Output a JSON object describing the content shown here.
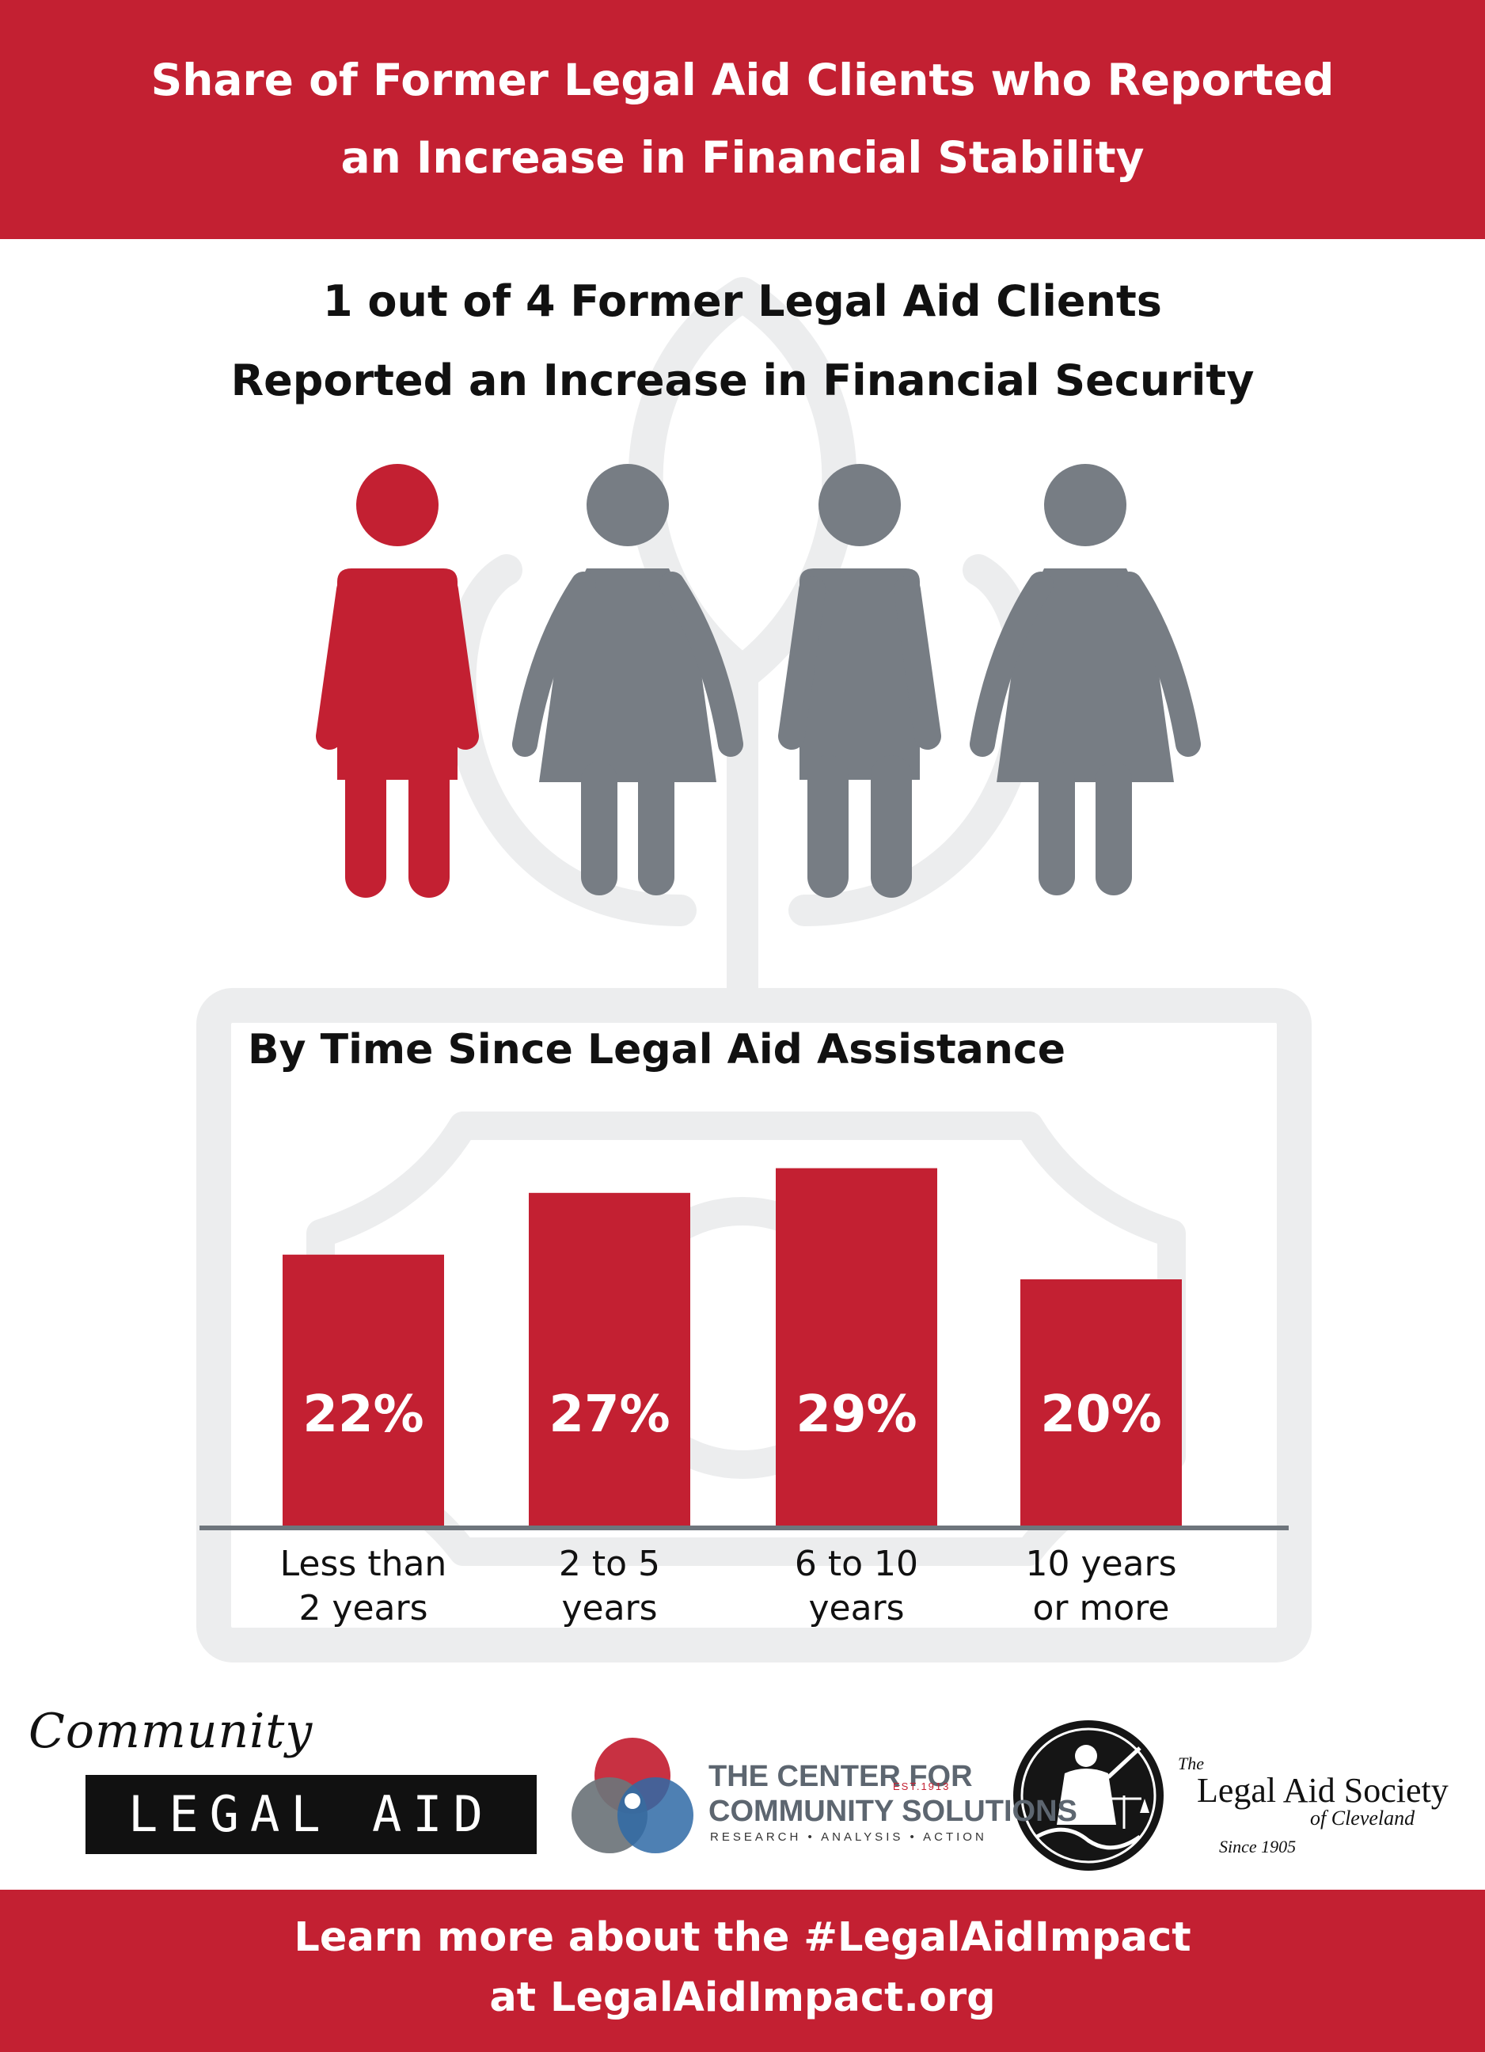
{
  "header": {
    "title_line1": "Share of Former Legal Aid Clients who Reported",
    "title_line2": "an Increase in Financial Stability"
  },
  "headline": {
    "line1": "1 out of 4 Former Legal Aid Clients",
    "line2": "Reported an Increase in Financial Security"
  },
  "pictogram": {
    "highlighted_count": 1,
    "total_count": 4,
    "highlight_color": "#c32032",
    "base_color": "#777d84",
    "figures": [
      "man",
      "woman",
      "man",
      "woman"
    ]
  },
  "chart_data": {
    "type": "bar",
    "title": "By Time Since Legal Aid Assistance",
    "categories": [
      "Less than 2 years",
      "2 to 5 years",
      "6 to 10 years",
      "10 years or more"
    ],
    "category_lines": [
      [
        "Less than",
        "2 years"
      ],
      [
        "2 to 5",
        "years"
      ],
      [
        "6 to 10",
        "years"
      ],
      [
        "10 years",
        "or more"
      ]
    ],
    "values": [
      22,
      27,
      29,
      20
    ],
    "value_labels": [
      "22%",
      "27%",
      "29%",
      "20%"
    ],
    "units": "%",
    "ylim": [
      0,
      30
    ],
    "bar_color": "#c32032",
    "baseline_color": "#6e757c",
    "grid": false,
    "legend": "none"
  },
  "logos": {
    "community_legal_aid": {
      "script": "Community",
      "word": "LEGAL AID"
    },
    "center_for_community_solutions": {
      "line1": "THE CENTER FOR",
      "line2": "COMMUNITY SOLUTIONS",
      "est": "EST.1913",
      "tagline": "RESEARCH • ANALYSIS • ACTION"
    },
    "legal_aid_society": {
      "the": "The",
      "name": "Legal Aid Society",
      "city": "of Cleveland",
      "since": "Since 1905"
    }
  },
  "footer": {
    "line1": "Learn more about the #LegalAidImpact",
    "line2": "at LegalAidImpact.org"
  },
  "colors": {
    "accent": "#c32032",
    "watermark": "#ecedee",
    "text": "#111111"
  }
}
